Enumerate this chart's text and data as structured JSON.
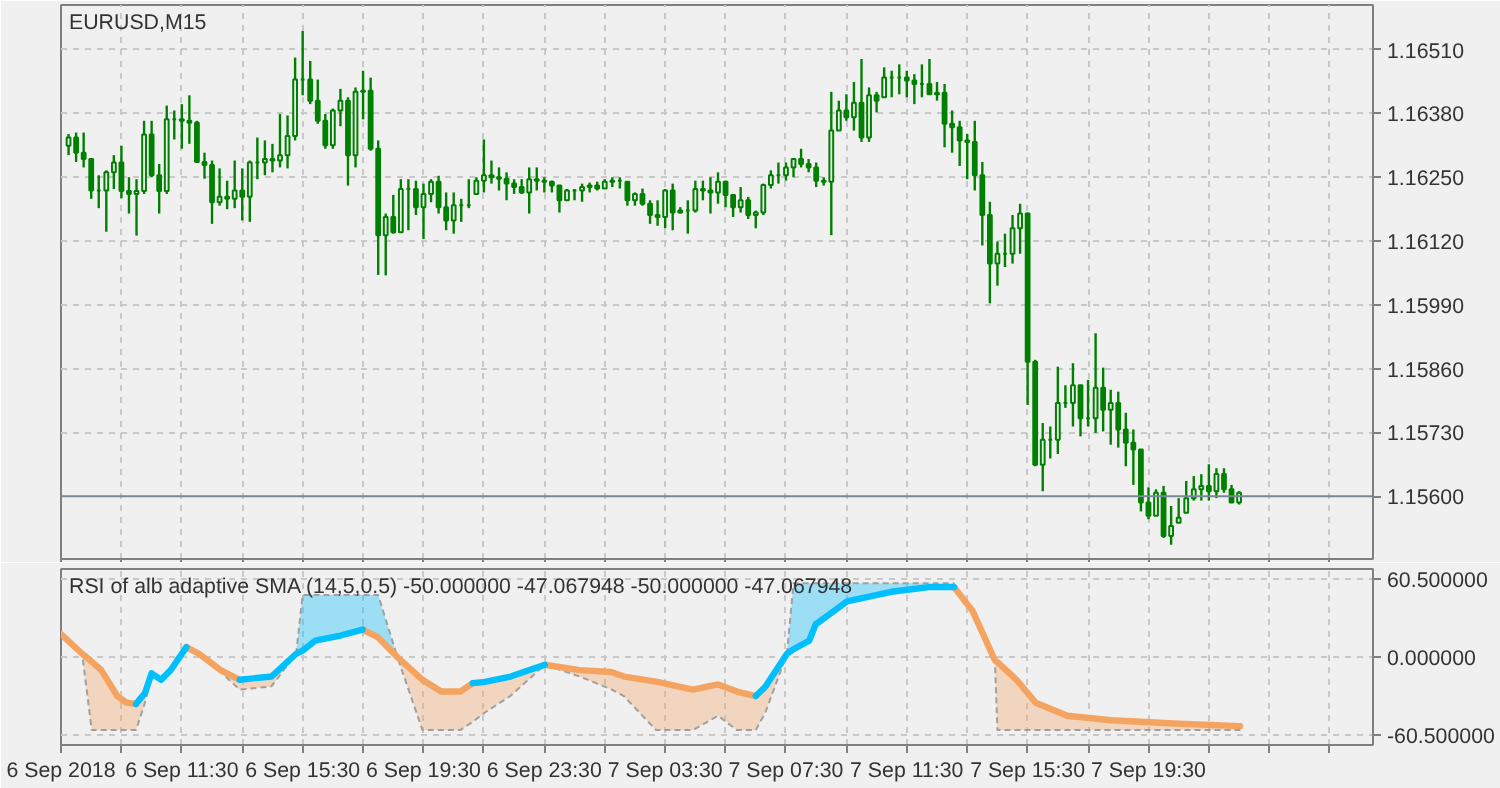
{
  "chart_data": [
    {
      "type": "candlestick",
      "title": "EURUSD,M15",
      "color": "#008000",
      "x": [
        "2018-09-06T07:45",
        "2018-09-06T08:00",
        "2018-09-06T08:15",
        "2018-09-06T08:30",
        "2018-09-06T08:45",
        "2018-09-06T09:00",
        "2018-09-06T09:15",
        "2018-09-06T09:30",
        "2018-09-06T09:45",
        "2018-09-06T10:00",
        "2018-09-06T10:15",
        "2018-09-06T10:30",
        "2018-09-06T10:45",
        "2018-09-06T11:00",
        "2018-09-06T11:15",
        "2018-09-06T11:30",
        "2018-09-06T11:45",
        "2018-09-06T12:00",
        "2018-09-06T12:15",
        "2018-09-06T12:30",
        "2018-09-06T12:45",
        "2018-09-06T13:00",
        "2018-09-06T13:15",
        "2018-09-06T13:30",
        "2018-09-06T13:45",
        "2018-09-06T14:00",
        "2018-09-06T14:15",
        "2018-09-06T14:30",
        "2018-09-06T14:45",
        "2018-09-06T15:00",
        "2018-09-06T15:15",
        "2018-09-06T15:30",
        "2018-09-06T15:45",
        "2018-09-06T16:00",
        "2018-09-06T16:15",
        "2018-09-06T16:30",
        "2018-09-06T16:45",
        "2018-09-06T17:00",
        "2018-09-06T17:15",
        "2018-09-06T17:30",
        "2018-09-06T17:45",
        "2018-09-06T18:00",
        "2018-09-06T18:15",
        "2018-09-06T18:30",
        "2018-09-06T18:45",
        "2018-09-06T19:00",
        "2018-09-06T19:15",
        "2018-09-06T19:30",
        "2018-09-06T19:45",
        "2018-09-06T20:00",
        "2018-09-06T20:15",
        "2018-09-06T20:30",
        "2018-09-06T20:45",
        "2018-09-06T21:00",
        "2018-09-06T21:15",
        "2018-09-06T21:30",
        "2018-09-06T21:45",
        "2018-09-06T22:00",
        "2018-09-06T22:15",
        "2018-09-06T22:30",
        "2018-09-06T22:45",
        "2018-09-06T23:00",
        "2018-09-06T23:15",
        "2018-09-06T23:30",
        "2018-09-06T23:45",
        "2018-09-07T00:00",
        "2018-09-07T00:15",
        "2018-09-07T00:30",
        "2018-09-07T00:45",
        "2018-09-07T01:00",
        "2018-09-07T01:15",
        "2018-09-07T01:30",
        "2018-09-07T01:45",
        "2018-09-07T02:00",
        "2018-09-07T02:15",
        "2018-09-07T02:30",
        "2018-09-07T02:45",
        "2018-09-07T03:00",
        "2018-09-07T03:15",
        "2018-09-07T03:30",
        "2018-09-07T03:45",
        "2018-09-07T04:00",
        "2018-09-07T04:15",
        "2018-09-07T04:30",
        "2018-09-07T04:45",
        "2018-09-07T05:00",
        "2018-09-07T05:15",
        "2018-09-07T05:30",
        "2018-09-07T05:45",
        "2018-09-07T06:00",
        "2018-09-07T06:15",
        "2018-09-07T06:30",
        "2018-09-07T06:45",
        "2018-09-07T07:00",
        "2018-09-07T07:15",
        "2018-09-07T07:30",
        "2018-09-07T07:45",
        "2018-09-07T08:00",
        "2018-09-07T08:15",
        "2018-09-07T08:30",
        "2018-09-07T08:45",
        "2018-09-07T09:00",
        "2018-09-07T09:15",
        "2018-09-07T09:30",
        "2018-09-07T09:45",
        "2018-09-07T10:00",
        "2018-09-07T10:15",
        "2018-09-07T10:30",
        "2018-09-07T10:45",
        "2018-09-07T11:00",
        "2018-09-07T11:15",
        "2018-09-07T11:30",
        "2018-09-07T11:45",
        "2018-09-07T12:00",
        "2018-09-07T12:15",
        "2018-09-07T12:30",
        "2018-09-07T12:45",
        "2018-09-07T13:00",
        "2018-09-07T13:15",
        "2018-09-07T13:30",
        "2018-09-07T13:45",
        "2018-09-07T14:00",
        "2018-09-07T14:15",
        "2018-09-07T14:30",
        "2018-09-07T14:45",
        "2018-09-07T15:00",
        "2018-09-07T15:15",
        "2018-09-07T15:30",
        "2018-09-07T15:45",
        "2018-09-07T16:00",
        "2018-09-07T16:15",
        "2018-09-07T16:30",
        "2018-09-07T16:45",
        "2018-09-07T17:00",
        "2018-09-07T17:15",
        "2018-09-07T17:30",
        "2018-09-07T17:45",
        "2018-09-07T18:00",
        "2018-09-07T18:15",
        "2018-09-07T18:30",
        "2018-09-07T18:45",
        "2018-09-07T19:00",
        "2018-09-07T19:15",
        "2018-09-07T19:30",
        "2018-09-07T19:45",
        "2018-09-07T20:00",
        "2018-09-07T20:15",
        "2018-09-07T20:30",
        "2018-09-07T20:45",
        "2018-09-07T21:00",
        "2018-09-07T21:15",
        "2018-09-07T21:30",
        "2018-09-07T21:45",
        "2018-09-07T22:00",
        "2018-09-07T22:15",
        "2018-09-07T22:30"
      ],
      "ohlc": [
        [
          1.16314,
          1.16338,
          1.16295,
          1.16331
        ],
        [
          1.16331,
          1.16341,
          1.16281,
          1.163
        ],
        [
          1.163,
          1.16341,
          1.1627,
          1.16287
        ],
        [
          1.16287,
          1.16287,
          1.16206,
          1.16223
        ],
        [
          1.16223,
          1.16254,
          1.16187,
          1.16223
        ],
        [
          1.16223,
          1.16264,
          1.16139,
          1.1626
        ],
        [
          1.1626,
          1.16295,
          1.16226,
          1.1628
        ],
        [
          1.1628,
          1.16314,
          1.16207,
          1.16222
        ],
        [
          1.16222,
          1.1625,
          1.16176,
          1.16216
        ],
        [
          1.16216,
          1.16246,
          1.16131,
          1.16222
        ],
        [
          1.16222,
          1.16365,
          1.16216,
          1.16337
        ],
        [
          1.16337,
          1.16365,
          1.1625,
          1.16254
        ],
        [
          1.16254,
          1.16277,
          1.16176,
          1.16222
        ],
        [
          1.16222,
          1.16396,
          1.16216,
          1.16368
        ],
        [
          1.16368,
          1.16386,
          1.16327,
          1.16368
        ],
        [
          1.16368,
          1.16399,
          1.16308,
          1.16365
        ],
        [
          1.16365,
          1.16417,
          1.16318,
          1.16361
        ],
        [
          1.16361,
          1.16365,
          1.16281,
          1.16281
        ],
        [
          1.16281,
          1.163,
          1.16247,
          1.16275
        ],
        [
          1.16275,
          1.16284,
          1.16155,
          1.16199
        ],
        [
          1.16199,
          1.16268,
          1.16192,
          1.1621
        ],
        [
          1.1621,
          1.16243,
          1.16185,
          1.16206
        ],
        [
          1.16206,
          1.16284,
          1.16187,
          1.16223
        ],
        [
          1.16223,
          1.16268,
          1.16162,
          1.1621
        ],
        [
          1.1621,
          1.16284,
          1.16159,
          1.1628
        ],
        [
          1.1628,
          1.16331,
          1.16246,
          1.1628
        ],
        [
          1.1628,
          1.16325,
          1.16254,
          1.16287
        ],
        [
          1.16287,
          1.16318,
          1.1626,
          1.16284
        ],
        [
          1.16284,
          1.16379,
          1.1627,
          1.16295
        ],
        [
          1.16295,
          1.16376,
          1.16268,
          1.16334
        ],
        [
          1.16334,
          1.16494,
          1.16325,
          1.16449
        ],
        [
          1.16449,
          1.16548,
          1.16417,
          1.16449
        ],
        [
          1.16449,
          1.16487,
          1.16399,
          1.16406
        ],
        [
          1.16406,
          1.16449,
          1.16359,
          1.16365
        ],
        [
          1.16365,
          1.16379,
          1.16308,
          1.16315
        ],
        [
          1.16315,
          1.1639,
          1.16308,
          1.16386
        ],
        [
          1.16386,
          1.1643,
          1.16354,
          1.16406
        ],
        [
          1.16406,
          1.16413,
          1.16233,
          1.16295
        ],
        [
          1.16295,
          1.16433,
          1.1627,
          1.16424
        ],
        [
          1.16424,
          1.16467,
          1.16368,
          1.16426
        ],
        [
          1.16426,
          1.16453,
          1.16304,
          1.16308
        ],
        [
          1.16308,
          1.16325,
          1.16051,
          1.16132
        ],
        [
          1.16132,
          1.16176,
          1.1605,
          1.16169
        ],
        [
          1.16169,
          1.16214,
          1.16135,
          1.16138
        ],
        [
          1.16138,
          1.16246,
          1.16138,
          1.16226
        ],
        [
          1.16226,
          1.16246,
          1.16142,
          1.16226
        ],
        [
          1.16226,
          1.16243,
          1.16173,
          1.16189
        ],
        [
          1.16189,
          1.16237,
          1.16124,
          1.16216
        ],
        [
          1.16216,
          1.16246,
          1.16199,
          1.16241
        ],
        [
          1.16241,
          1.16253,
          1.16176,
          1.16189
        ],
        [
          1.16189,
          1.16219,
          1.16142,
          1.16162
        ],
        [
          1.16162,
          1.16219,
          1.16135,
          1.16193
        ],
        [
          1.16193,
          1.16206,
          1.16159,
          1.16193
        ],
        [
          1.16193,
          1.16246,
          1.16187,
          1.16193
        ],
        [
          1.16216,
          1.1625,
          1.16216,
          1.16243
        ],
        [
          1.16243,
          1.16327,
          1.16219,
          1.16254
        ],
        [
          1.16254,
          1.16284,
          1.16237,
          1.1625
        ],
        [
          1.1625,
          1.1627,
          1.16223,
          1.16247
        ],
        [
          1.16247,
          1.1626,
          1.16203,
          1.16237
        ],
        [
          1.16237,
          1.16246,
          1.16216,
          1.1623
        ],
        [
          1.1623,
          1.16246,
          1.16216,
          1.16219
        ],
        [
          1.16219,
          1.1627,
          1.16176,
          1.16246
        ],
        [
          1.16246,
          1.1627,
          1.16223,
          1.16243
        ],
        [
          1.16243,
          1.1625,
          1.16219,
          1.16241
        ],
        [
          1.16241,
          1.16243,
          1.16219,
          1.16233
        ],
        [
          1.16233,
          1.16233,
          1.16178,
          1.16203
        ],
        [
          1.16203,
          1.16226,
          1.16203,
          1.16223
        ],
        [
          1.16223,
          1.16226,
          1.16203,
          1.16223
        ],
        [
          1.16223,
          1.16237,
          1.162,
          1.1623
        ],
        [
          1.1623,
          1.16239,
          1.16219,
          1.16233
        ],
        [
          1.16233,
          1.16241,
          1.16223,
          1.16227
        ],
        [
          1.16227,
          1.16246,
          1.16226,
          1.16241
        ],
        [
          1.16241,
          1.1625,
          1.1623,
          1.16243
        ],
        [
          1.16243,
          1.1625,
          1.16227,
          1.16243
        ],
        [
          1.16241,
          1.16241,
          1.16192,
          1.16203
        ],
        [
          1.16203,
          1.16219,
          1.16192,
          1.16216
        ],
        [
          1.16216,
          1.16227,
          1.16192,
          1.16196
        ],
        [
          1.16196,
          1.16203,
          1.16155,
          1.16173
        ],
        [
          1.16173,
          1.16203,
          1.16151,
          1.16169
        ],
        [
          1.16169,
          1.16226,
          1.16146,
          1.16223
        ],
        [
          1.16223,
          1.16237,
          1.16142,
          1.16178
        ],
        [
          1.16178,
          1.16189,
          1.16176,
          1.16182
        ],
        [
          1.16182,
          1.16203,
          1.16135,
          1.16182
        ],
        [
          1.16182,
          1.16243,
          1.16178,
          1.16226
        ],
        [
          1.16226,
          1.16243,
          1.16203,
          1.16223
        ],
        [
          1.16223,
          1.1625,
          1.16176,
          1.16219
        ],
        [
          1.16219,
          1.1626,
          1.16196,
          1.16241
        ],
        [
          1.16241,
          1.16243,
          1.16189,
          1.16214
        ],
        [
          1.16214,
          1.16216,
          1.16169,
          1.16189
        ],
        [
          1.16189,
          1.1623,
          1.16178,
          1.16203
        ],
        [
          1.16203,
          1.1621,
          1.16165,
          1.16173
        ],
        [
          1.16173,
          1.16182,
          1.16146,
          1.16178
        ],
        [
          1.16178,
          1.16237,
          1.16173,
          1.16234
        ],
        [
          1.16234,
          1.16264,
          1.16227,
          1.16254
        ],
        [
          1.16254,
          1.1628,
          1.16237,
          1.16254
        ],
        [
          1.16254,
          1.1628,
          1.16243,
          1.1627
        ],
        [
          1.1627,
          1.16288,
          1.1625,
          1.16287
        ],
        [
          1.16287,
          1.16308,
          1.1627,
          1.16277
        ],
        [
          1.16277,
          1.16287,
          1.1626,
          1.1627
        ],
        [
          1.1627,
          1.1628,
          1.1623,
          1.16243
        ],
        [
          1.16243,
          1.1625,
          1.16233,
          1.16241
        ],
        [
          1.16241,
          1.16424,
          1.16132,
          1.16345
        ],
        [
          1.16345,
          1.16406,
          1.16345,
          1.16386
        ],
        [
          1.16386,
          1.16419,
          1.16365,
          1.16372
        ],
        [
          1.16372,
          1.16444,
          1.16345,
          1.16402
        ],
        [
          1.16402,
          1.16491,
          1.16322,
          1.16331
        ],
        [
          1.16331,
          1.16433,
          1.16322,
          1.16417
        ],
        [
          1.16417,
          1.16424,
          1.16382,
          1.16406
        ],
        [
          1.16413,
          1.16474,
          1.16413,
          1.16453
        ],
        [
          1.16453,
          1.16467,
          1.16413,
          1.16453
        ],
        [
          1.16453,
          1.1648,
          1.16419,
          1.16453
        ],
        [
          1.16453,
          1.16467,
          1.16413,
          1.16447
        ],
        [
          1.16447,
          1.1646,
          1.16399,
          1.1644
        ],
        [
          1.1644,
          1.1648,
          1.16413,
          1.1644
        ],
        [
          1.1644,
          1.16491,
          1.16419,
          1.16419
        ],
        [
          1.16419,
          1.16444,
          1.16406,
          1.16422
        ],
        [
          1.16422,
          1.1644,
          1.16311,
          1.16359
        ],
        [
          1.16359,
          1.16386,
          1.163,
          1.16352
        ],
        [
          1.16352,
          1.16365,
          1.16273,
          1.16325
        ],
        [
          1.16325,
          1.16338,
          1.16246,
          1.16322
        ],
        [
          1.16322,
          1.16365,
          1.16223,
          1.16254
        ],
        [
          1.16254,
          1.16281,
          1.16111,
          1.16173
        ],
        [
          1.16173,
          1.162,
          1.15993,
          1.16074
        ],
        [
          1.16074,
          1.16119,
          1.16029,
          1.16094
        ],
        [
          1.16094,
          1.16135,
          1.16067,
          1.16094
        ],
        [
          1.16094,
          1.16173,
          1.16074,
          1.16146
        ],
        [
          1.16146,
          1.16196,
          1.16094,
          1.16176
        ],
        [
          1.16176,
          1.16178,
          1.15786,
          1.15874
        ],
        [
          1.15874,
          1.15878,
          1.15661,
          1.15664
        ],
        [
          1.15664,
          1.15749,
          1.1561,
          1.15715
        ],
        [
          1.15715,
          1.15742,
          1.15677,
          1.15715
        ],
        [
          1.15715,
          1.15864,
          1.15686,
          1.1579
        ],
        [
          1.1579,
          1.15826,
          1.1578,
          1.1579
        ],
        [
          1.1579,
          1.15871,
          1.15742,
          1.15826
        ],
        [
          1.15826,
          1.15826,
          1.15722,
          1.15759
        ],
        [
          1.15759,
          1.15837,
          1.15742,
          1.15759
        ],
        [
          1.15759,
          1.15932,
          1.15729,
          1.15821
        ],
        [
          1.15821,
          1.15862,
          1.15732,
          1.15776
        ],
        [
          1.15776,
          1.15817,
          1.15705,
          1.1579
        ],
        [
          1.1579,
          1.15813,
          1.15699,
          1.15736
        ],
        [
          1.15736,
          1.1577,
          1.15661,
          1.15709
        ],
        [
          1.15709,
          1.15736,
          1.15623,
          1.15695
        ],
        [
          1.15695,
          1.15695,
          1.15569,
          1.15587
        ],
        [
          1.15587,
          1.15618,
          1.15553,
          1.1556
        ],
        [
          1.1556,
          1.15614,
          1.1556,
          1.15607
        ],
        [
          1.15607,
          1.15621,
          1.15515,
          1.15519
        ],
        [
          1.15519,
          1.1558,
          1.15501,
          1.15539
        ],
        [
          1.15546,
          1.15596,
          1.15546,
          1.15556
        ],
        [
          1.15566,
          1.15631,
          1.15566,
          1.15596
        ],
        [
          1.15596,
          1.15641,
          1.15591,
          1.15614
        ],
        [
          1.15614,
          1.15645,
          1.15591,
          1.15621
        ],
        [
          1.15621,
          1.15665,
          1.15591,
          1.1561
        ],
        [
          1.1561,
          1.15657,
          1.15596,
          1.15645
        ],
        [
          1.15645,
          1.15657,
          1.15607,
          1.15614
        ],
        [
          1.15614,
          1.15623,
          1.15587,
          1.15587
        ],
        [
          1.15587,
          1.1561,
          1.15583,
          1.15607
        ]
      ],
      "xlim": [
        "2018-09-06T07:30",
        "2018-09-08T02:56"
      ],
      "ylim": [
        1.15472,
        1.16601
      ],
      "xticks": [
        {
          "value": "2018-09-06T07:30",
          "label": null
        },
        {
          "value": "2018-09-06T09:30",
          "label": null
        },
        {
          "value": "2018-09-06T11:30",
          "label": null
        },
        {
          "value": "2018-09-06T13:30",
          "label": null
        },
        {
          "value": "2018-09-06T15:30",
          "label": null
        },
        {
          "value": "2018-09-06T17:30",
          "label": null
        },
        {
          "value": "2018-09-06T19:30",
          "label": null
        },
        {
          "value": "2018-09-06T21:30",
          "label": null
        },
        {
          "value": "2018-09-06T23:30",
          "label": null
        },
        {
          "value": "2018-09-07T01:30",
          "label": null
        },
        {
          "value": "2018-09-07T03:30",
          "label": null
        },
        {
          "value": "2018-09-07T05:30",
          "label": null
        },
        {
          "value": "2018-09-07T07:30",
          "label": null
        },
        {
          "value": "2018-09-07T09:30",
          "label": null
        },
        {
          "value": "2018-09-07T11:30",
          "label": null
        },
        {
          "value": "2018-09-07T13:30",
          "label": null
        },
        {
          "value": "2018-09-07T15:30",
          "label": null
        },
        {
          "value": "2018-09-07T17:30",
          "label": null
        },
        {
          "value": "2018-09-07T19:30",
          "label": null
        },
        {
          "value": "2018-09-07T21:30",
          "label": null
        },
        {
          "value": "2018-09-07T23:30",
          "label": null
        },
        {
          "value": "2018-09-08T01:30",
          "label": null
        }
      ],
      "yticks": [
        {
          "value": 1.1651,
          "label": "1.16510"
        },
        {
          "value": 1.1638,
          "label": "1.16380"
        },
        {
          "value": 1.1625,
          "label": "1.16250"
        },
        {
          "value": 1.1612,
          "label": "1.16120"
        },
        {
          "value": 1.1599,
          "label": "1.15990"
        },
        {
          "value": 1.1586,
          "label": "1.15860"
        },
        {
          "value": 1.1573,
          "label": "1.15730"
        }
      ],
      "grid": true,
      "tick_labels": "y",
      "ref_lines": [
        {
          "axis": "y",
          "value": 1.156,
          "label": "1.15600",
          "color": "#778899"
        }
      ]
    },
    {
      "type": "line",
      "title": "RSI of alb adaptive SMA (14,5,0.5) -50.000000 -47.067948 -50.000000 -47.067948",
      "x": [
        "2018-09-06T07:30",
        "2018-09-06T08:12",
        "2018-09-06T08:31",
        "2018-09-06T08:50",
        "2018-09-06T09:22",
        "2018-09-06T09:40",
        "2018-09-06T09:59",
        "2018-09-06T10:17",
        "2018-09-06T10:30",
        "2018-09-06T10:49",
        "2018-09-06T11:08",
        "2018-09-06T11:39",
        "2018-09-06T12:04",
        "2018-09-06T12:47",
        "2018-09-06T13:25",
        "2018-09-06T14:28",
        "2018-09-06T15:17",
        "2018-09-06T15:30",
        "2018-09-06T15:55",
        "2018-09-06T16:45",
        "2018-09-06T17:29",
        "2018-09-06T18:00",
        "2018-09-06T18:38",
        "2018-09-06T19:28",
        "2018-09-06T20:05",
        "2018-09-06T20:43",
        "2018-09-06T21:08",
        "2018-09-06T21:32",
        "2018-09-06T22:23",
        "2018-09-06T23:31",
        "2018-09-07T00:40",
        "2018-09-07T01:43",
        "2018-09-07T02:08",
        "2018-09-07T03:12",
        "2018-09-07T04:25",
        "2018-09-07T05:15",
        "2018-09-07T05:53",
        "2018-09-07T06:30",
        "2018-09-07T06:49",
        "2018-09-07T07:32",
        "2018-09-07T07:45",
        "2018-09-07T08:16",
        "2018-09-07T08:29",
        "2018-09-07T09:31",
        "2018-09-07T10:59",
        "2018-09-07T12:14",
        "2018-09-07T13:04",
        "2018-09-07T13:41",
        "2018-09-07T14:25",
        "2018-09-07T14:30",
        "2018-09-07T15:08",
        "2018-09-07T15:46",
        "2018-09-07T16:49",
        "2018-09-07T18:16",
        "2018-09-07T20:21",
        "2018-09-07T22:32"
      ],
      "series": [
        {
          "color": "#f4a460",
          "values": [
            17.6,
            2.5,
            -3.5,
            -10.1,
            -30.2,
            -35.3,
            -36.3,
            null,
            null,
            null,
            null,
            7.6,
            2.5,
            -10.1,
            -17.6,
            null,
            null,
            null,
            null,
            null,
            21.2,
            15.1,
            0,
            -17.6,
            -26.7,
            -26.7,
            -20.2,
            null,
            null,
            -6.0,
            -10.1,
            -11.6,
            -15.1,
            -19,
            -25.2,
            -21.2,
            -26.7,
            -30.2,
            null,
            null,
            null,
            null,
            null,
            null,
            null,
            null,
            54,
            35.3,
            -2.5,
            -4,
            -17.6,
            -35.3,
            -45.4,
            -48.9,
            -51.4,
            -53.4
          ],
          "lower": [
            null,
            2.5,
            -56.5,
            -56.5,
            -56.5,
            -56.5,
            -56.5,
            -35,
            -15.1,
            null,
            null,
            null,
            2.5,
            -11.6,
            -25.2,
            -22.7,
            2.5,
            null,
            null,
            null,
            null,
            null,
            0,
            -56.5,
            -56.5,
            -56.5,
            -50,
            -42.9,
            -30,
            -6.0,
            -15,
            -25,
            -30.2,
            -56.5,
            -56.5,
            -45.4,
            -56.5,
            -56.5,
            -42.9,
            2.5,
            null,
            null,
            null,
            null,
            null,
            null,
            null,
            null,
            -2.5,
            -56.5,
            -56.5,
            -56.5,
            -56.5,
            -56.5,
            -56.5,
            -56.5
          ],
          "upper": [
            null,
            2.5,
            -3.5,
            -10.1,
            -30.2,
            -35.3,
            -36.3,
            -27.7,
            -12.6,
            null,
            null,
            null,
            2.5,
            -10.1,
            -17.6,
            -15.1,
            2.5,
            null,
            null,
            null,
            null,
            null,
            0,
            -17.6,
            -26.7,
            -26.7,
            -20.2,
            -19.2,
            -15.1,
            -6.0,
            -10.1,
            -11.6,
            -15.1,
            -19,
            -25.2,
            -21.2,
            -26.7,
            -30.2,
            -23,
            2.5,
            null,
            null,
            null,
            null,
            null,
            null,
            null,
            null,
            -2.5,
            -4,
            -17.6,
            -35.3,
            -45.4,
            -48.9,
            -51.4,
            -53.4
          ]
        },
        {
          "color": "#00bfff",
          "values": [
            null,
            null,
            null,
            null,
            null,
            null,
            -36.3,
            -27.7,
            -12.6,
            -17.6,
            -10.1,
            7.6,
            null,
            null,
            -17.6,
            -15.1,
            2.5,
            5.0,
            12.6,
            16.6,
            21.2,
            null,
            null,
            null,
            null,
            null,
            -20.2,
            -19.2,
            -15.1,
            -6.0,
            null,
            null,
            null,
            null,
            null,
            null,
            null,
            -30.2,
            -23,
            2.5,
            6.0,
            12.6,
            25.2,
            42.9,
            50.4,
            54,
            54,
            null,
            null,
            null,
            null,
            null,
            null,
            null,
            null,
            null
          ],
          "lower": [
            null,
            null,
            null,
            null,
            null,
            null,
            null,
            null,
            null,
            null,
            null,
            null,
            null,
            null,
            null,
            null,
            2.5,
            5.0,
            12.6,
            16.6,
            21.2,
            15.1,
            0,
            null,
            null,
            null,
            null,
            null,
            null,
            null,
            null,
            null,
            null,
            null,
            null,
            null,
            null,
            null,
            null,
            2.5,
            6.0,
            12.6,
            25.2,
            42.9,
            50.4,
            54,
            54,
            null,
            null,
            null,
            null,
            null,
            null,
            null,
            null,
            null
          ],
          "upper": [
            null,
            null,
            null,
            null,
            null,
            null,
            null,
            null,
            null,
            null,
            null,
            null,
            null,
            null,
            null,
            null,
            2.5,
            47.9,
            47.9,
            47.9,
            47.9,
            47.9,
            0,
            null,
            null,
            null,
            null,
            null,
            null,
            null,
            null,
            null,
            null,
            null,
            null,
            null,
            null,
            null,
            null,
            2.5,
            57,
            57,
            57,
            57,
            57,
            57,
            57,
            null,
            null,
            null,
            null,
            null,
            null,
            null,
            null,
            null
          ]
        }
      ],
      "xlim": [
        "2018-09-06T07:30",
        "2018-09-08T02:56"
      ],
      "ylim": [
        -68,
        68
      ],
      "xticks": [
        {
          "value": "2018-09-06T07:30",
          "label": "6 Sep 2018"
        },
        {
          "value": "2018-09-06T09:30",
          "label": null
        },
        {
          "value": "2018-09-06T11:30",
          "label": "6 Sep 11:30"
        },
        {
          "value": "2018-09-06T13:30",
          "label": null
        },
        {
          "value": "2018-09-06T15:30",
          "label": "6 Sep 15:30"
        },
        {
          "value": "2018-09-06T17:30",
          "label": null
        },
        {
          "value": "2018-09-06T19:30",
          "label": "6 Sep 19:30"
        },
        {
          "value": "2018-09-06T21:30",
          "label": null
        },
        {
          "value": "2018-09-06T23:30",
          "label": "6 Sep 23:30"
        },
        {
          "value": "2018-09-07T01:30",
          "label": null
        },
        {
          "value": "2018-09-07T03:30",
          "label": "7 Sep 03:30"
        },
        {
          "value": "2018-09-07T05:30",
          "label": null
        },
        {
          "value": "2018-09-07T07:30",
          "label": "7 Sep 07:30"
        },
        {
          "value": "2018-09-07T09:30",
          "label": null
        },
        {
          "value": "2018-09-07T11:30",
          "label": "7 Sep 11:30"
        },
        {
          "value": "2018-09-07T13:30",
          "label": null
        },
        {
          "value": "2018-09-07T15:30",
          "label": "7 Sep 15:30"
        },
        {
          "value": "2018-09-07T17:30",
          "label": null
        },
        {
          "value": "2018-09-07T19:30",
          "label": "7 Sep 19:30"
        },
        {
          "value": "2018-09-07T21:30",
          "label": null
        },
        {
          "value": "2018-09-07T23:30",
          "label": null
        },
        {
          "value": "2018-09-08T01:30",
          "label": null
        }
      ],
      "yticks": [
        {
          "value": 60.5,
          "label": "60.500000"
        },
        {
          "value": 0,
          "label": "0.000000"
        },
        {
          "value": -60.5,
          "label": "-60.500000"
        }
      ],
      "grid": true
    }
  ]
}
